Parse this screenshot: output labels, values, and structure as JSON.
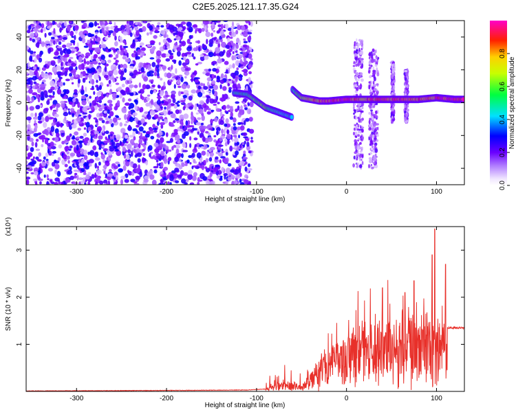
{
  "title": "C2E5.2025.121.17.35.G24",
  "chart_data": [
    {
      "type": "heatmap",
      "xlabel": "Height of straight line (km)",
      "ylabel": "Frequency (Hz)",
      "xlim": [
        -356,
        131
      ],
      "ylim": [
        -50,
        50
      ],
      "xticks": [
        -300,
        -200,
        -100,
        0,
        100
      ],
      "yticks": [
        -40,
        -20,
        0,
        20,
        40
      ],
      "colorbar": {
        "label": "Normalized spectral amplitude",
        "range": [
          0,
          1
        ],
        "ticks": [
          "0.0",
          "0.2",
          "0.4",
          "0.6",
          "0.8"
        ],
        "colors": [
          "#ffffff",
          "#7b00ff",
          "#0000ff",
          "#00ffff",
          "#00ff00",
          "#ffff00",
          "#ff0000",
          "#ff00ff"
        ]
      },
      "features": {
        "noise_band_x": [
          -356,
          -105
        ],
        "noise_level": 0.25,
        "main_track": [
          {
            "x": -125,
            "y": 6,
            "a": 0.45
          },
          {
            "x": -110,
            "y": 5,
            "a": 0.5
          },
          {
            "x": -100,
            "y": 1,
            "a": 0.55
          },
          {
            "x": -90,
            "y": -3,
            "a": 0.55
          },
          {
            "x": -80,
            "y": -5,
            "a": 0.5
          },
          {
            "x": -70,
            "y": -7,
            "a": 0.45
          },
          {
            "x": -60,
            "y": -9,
            "a": 0.4
          }
        ],
        "branch_track": [
          {
            "x": -60,
            "y": 8,
            "a": 0.45
          },
          {
            "x": -50,
            "y": 3,
            "a": 0.6
          },
          {
            "x": -40,
            "y": 2,
            "a": 0.7
          },
          {
            "x": -30,
            "y": 1,
            "a": 0.8
          },
          {
            "x": -20,
            "y": 1,
            "a": 0.85
          },
          {
            "x": 0,
            "y": 2,
            "a": 0.9
          },
          {
            "x": 20,
            "y": 2,
            "a": 0.75
          },
          {
            "x": 40,
            "y": 2,
            "a": 0.9
          },
          {
            "x": 60,
            "y": 2,
            "a": 0.85
          },
          {
            "x": 80,
            "y": 2,
            "a": 0.8
          },
          {
            "x": 100,
            "y": 3,
            "a": 0.85
          },
          {
            "x": 120,
            "y": 2,
            "a": 0.9
          },
          {
            "x": 131,
            "y": 2,
            "a": 0.9
          }
        ],
        "vertical_bands": [
          {
            "x1": 8,
            "x2": 18,
            "y1": -40,
            "y2": 38
          },
          {
            "x1": 25,
            "x2": 35,
            "y1": -40,
            "y2": 32
          },
          {
            "x1": 50,
            "x2": 53,
            "y1": -12,
            "y2": 25
          },
          {
            "x1": 65,
            "x2": 68,
            "y1": -12,
            "y2": 20
          }
        ]
      }
    },
    {
      "type": "line",
      "xlabel": "Height of straight line (km)",
      "ylabel": "SNR (10 * v/v)",
      "yscale_label": "(x10⁴)",
      "xlim": [
        -356,
        131
      ],
      "ylim": [
        0,
        3.5
      ],
      "xticks": [
        -300,
        -200,
        -100,
        0,
        100
      ],
      "yticks": [
        1,
        2,
        3
      ],
      "color": "#e8302a",
      "envelope": [
        {
          "x": -356,
          "y": 0.01
        },
        {
          "x": -200,
          "y": 0.02
        },
        {
          "x": -110,
          "y": 0.03
        },
        {
          "x": -90,
          "y": 0.05
        },
        {
          "x": -80,
          "y": 0.15
        },
        {
          "x": -60,
          "y": 0.2
        },
        {
          "x": -50,
          "y": 0.1
        },
        {
          "x": -40,
          "y": 0.4
        },
        {
          "x": -20,
          "y": 0.8
        },
        {
          "x": 0,
          "y": 1.0
        },
        {
          "x": 20,
          "y": 1.2
        },
        {
          "x": 40,
          "y": 1.35
        },
        {
          "x": 60,
          "y": 1.4
        },
        {
          "x": 80,
          "y": 1.45
        },
        {
          "x": 100,
          "y": 1.4
        },
        {
          "x": 110,
          "y": 1.35
        },
        {
          "x": 131,
          "y": 1.35
        }
      ],
      "peaks": [
        {
          "x": 98,
          "y": 3.45
        },
        {
          "x": 95,
          "y": 2.9
        },
        {
          "x": 40,
          "y": 2.2
        },
        {
          "x": 75,
          "y": 2.35
        },
        {
          "x": 65,
          "y": 2.1
        },
        {
          "x": 110,
          "y": 2.7
        }
      ]
    }
  ]
}
